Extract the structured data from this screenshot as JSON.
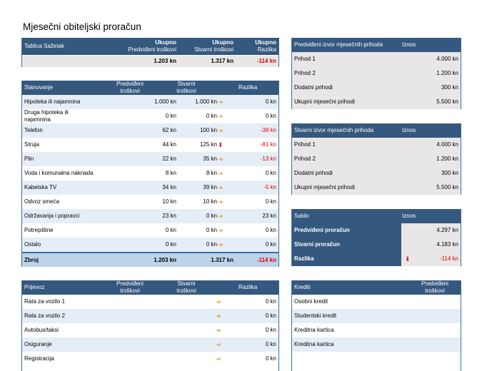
{
  "title": "Mjesečni obiteljski proračun",
  "summary": {
    "h1": "Tablica Sažetak",
    "h2a": "Ukupno",
    "h2b": "Predviđeni troškovi",
    "h3a": "Ukupno",
    "h3b": "Stvarni troškovi",
    "h4a": "Ukupno",
    "h4b": "Razlika",
    "v_plan": "1.203 kn",
    "v_actual": "1.317 kn",
    "v_diff": "-114 kn"
  },
  "housing": {
    "h_name": "Stanovanje",
    "h_plan_a": "Predviđeni",
    "h_plan_b": "troškovi",
    "h_act_a": "Stvarni",
    "h_act_b": "troškovi",
    "h_diff": "Razlika",
    "rows": [
      {
        "name": "Hipoteka ili najamnina",
        "plan": "1.000 kn",
        "actual": "1.000 kn",
        "arrow": "➔",
        "diff": "0 kn"
      },
      {
        "name": "Druga hipoteka ili najamnina",
        "plan": "0 kn",
        "actual": "0 kn",
        "arrow": "➔",
        "diff": "0 kn"
      },
      {
        "name": "Telefon",
        "plan": "62 kn",
        "actual": "100 kn",
        "arrow": "➔",
        "diff": "-38 kn"
      },
      {
        "name": "Struja",
        "plan": "44 kn",
        "actual": "125 kn",
        "arrow": "⬇",
        "diff": "-81 kn"
      },
      {
        "name": "Plin",
        "plan": "22 kn",
        "actual": "35 kn",
        "arrow": "➔",
        "diff": "-13 kn"
      },
      {
        "name": "Voda i komunalna naknada",
        "plan": "8 kn",
        "actual": "8 kn",
        "arrow": "➔",
        "diff": "0 kn"
      },
      {
        "name": "Kabelska TV",
        "plan": "34 kn",
        "actual": "39 kn",
        "arrow": "➔",
        "diff": "-5 kn"
      },
      {
        "name": "Odvoz smeća",
        "plan": "10 kn",
        "actual": "10 kn",
        "arrow": "➔",
        "diff": "0 kn"
      },
      {
        "name": "Održavanja i popravci",
        "plan": "23 kn",
        "actual": "0 kn",
        "arrow": "➔",
        "diff": "23 kn"
      },
      {
        "name": "Potrepštine",
        "plan": "0 kn",
        "actual": "0 kn",
        "arrow": "➔",
        "diff": "0 kn"
      },
      {
        "name": "Ostalo",
        "plan": "0 kn",
        "actual": "0 kn",
        "arrow": "➔",
        "diff": "0 kn"
      }
    ],
    "total_label": "Zbroj",
    "total_plan": "1.203 kn",
    "total_actual": "1.317 kn",
    "total_diff": "-114 kn"
  },
  "planned_income": {
    "h_name": "Predviđeni izvor mjesečnih prihoda",
    "h_amount": "Iznos",
    "rows": [
      {
        "name": "Prihod 1",
        "value": "4.000 kn"
      },
      {
        "name": "Prihod 2",
        "value": "1.200 kn"
      },
      {
        "name": "Dodatni prihodi",
        "value": "300 kn"
      },
      {
        "name": "Ukupni mjesečni prihodi",
        "value": "5.500 kn"
      }
    ]
  },
  "actual_income": {
    "h_name": "Stvarni izvor mjesečnih prihoda",
    "h_amount": "Iznos",
    "rows": [
      {
        "name": "Prihod 1",
        "value": "4.000 kn"
      },
      {
        "name": "Prihod 2",
        "value": "1.200 kn"
      },
      {
        "name": "Dodatni prihodi",
        "value": "300 kn"
      },
      {
        "name": "Ukupni mjesečni prihodi",
        "value": "5.500 kn"
      }
    ]
  },
  "balance": {
    "h_name": "Saldo",
    "h_amount": "Iznos",
    "rows": [
      {
        "name": "Predviđeni proračun",
        "value": "4.297 kn",
        "arrow": ""
      },
      {
        "name": "Stvarni proračun",
        "value": "4.183 kn",
        "arrow": ""
      },
      {
        "name": "Razlika",
        "value": "-114 kn",
        "arrow": "⬇"
      }
    ]
  },
  "transport": {
    "h_name": "Prijevoz",
    "h_plan_a": "Predviđeni",
    "h_plan_b": "troškovi",
    "h_act_a": "Stvarni",
    "h_act_b": "troškovi",
    "h_diff": "Razlika",
    "rows": [
      {
        "name": "Rata za vozilo 1",
        "arrow": "➔",
        "diff": "0 kn"
      },
      {
        "name": "Rata za vozilo 2",
        "arrow": "➔",
        "diff": "0 kn"
      },
      {
        "name": "Autobus/taksi",
        "arrow": "➔",
        "diff": "0 kn"
      },
      {
        "name": "Osiguranje",
        "arrow": "➔",
        "diff": "0 kn"
      },
      {
        "name": "Registracija",
        "arrow": "➔",
        "diff": "0 kn"
      }
    ]
  },
  "loans": {
    "h_name": "Krediti",
    "h_plan_a": "Predviđeni",
    "h_plan_b": "troškovi",
    "rows": [
      {
        "name": "Osobni kredit"
      },
      {
        "name": "Studentski kredit"
      },
      {
        "name": "Kreditna kartica"
      },
      {
        "name": "Kreditna kartica"
      }
    ]
  }
}
